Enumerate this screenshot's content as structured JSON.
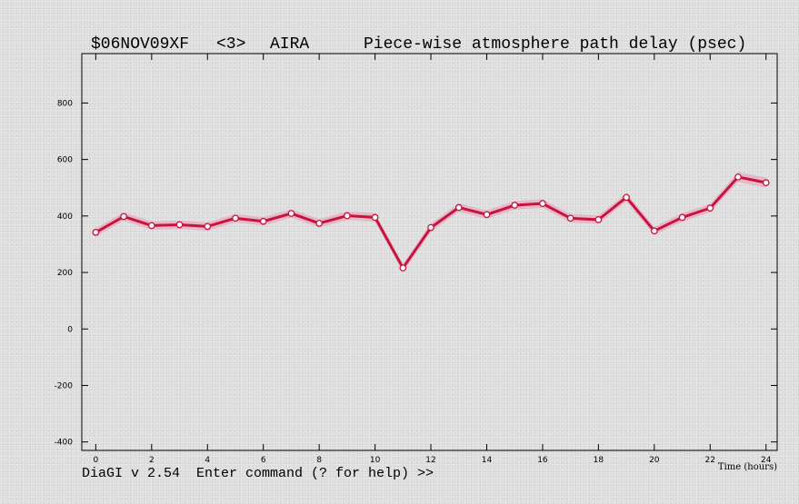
{
  "window": {
    "experiment": "$06NOV09XF",
    "band": "<3>",
    "station": "AIRA",
    "plot_title": "Piece-wise atmosphere path delay (psec)"
  },
  "command_line": "DiaGI v 2.54  Enter command (? for help) >>",
  "colors": {
    "line": "#c8143c",
    "band": "#e8a8c0",
    "marker_fill": "#ffffff"
  },
  "chart_data": {
    "type": "line",
    "title": "Piece-wise atmosphere path delay (psec)",
    "xlabel": "Time (hours)",
    "ylabel": "",
    "xlim": [
      -0.5,
      24.4
    ],
    "ylim": [
      -430,
      975
    ],
    "xticks": [
      0,
      2,
      4,
      6,
      8,
      10,
      12,
      14,
      16,
      18,
      20,
      22,
      24
    ],
    "yticks": [
      -400,
      -200,
      0,
      200,
      400,
      600,
      800
    ],
    "grid": false,
    "series": [
      {
        "x": [
          0,
          1,
          2,
          3,
          4,
          5,
          6,
          7,
          8,
          9,
          10,
          11,
          12,
          13,
          14,
          15,
          16,
          17,
          18,
          19,
          20,
          21,
          22,
          23,
          24
        ],
        "y": [
          342,
          398,
          366,
          369,
          363,
          392,
          381,
          409,
          374,
          401,
          395,
          216,
          359,
          430,
          405,
          438,
          444,
          392,
          387,
          466,
          347,
          395,
          428,
          538,
          518
        ],
        "error": [
          15,
          15,
          15,
          15,
          15,
          15,
          15,
          15,
          15,
          15,
          15,
          15,
          15,
          15,
          15,
          15,
          15,
          15,
          15,
          15,
          15,
          15,
          15,
          18,
          18
        ]
      }
    ]
  }
}
